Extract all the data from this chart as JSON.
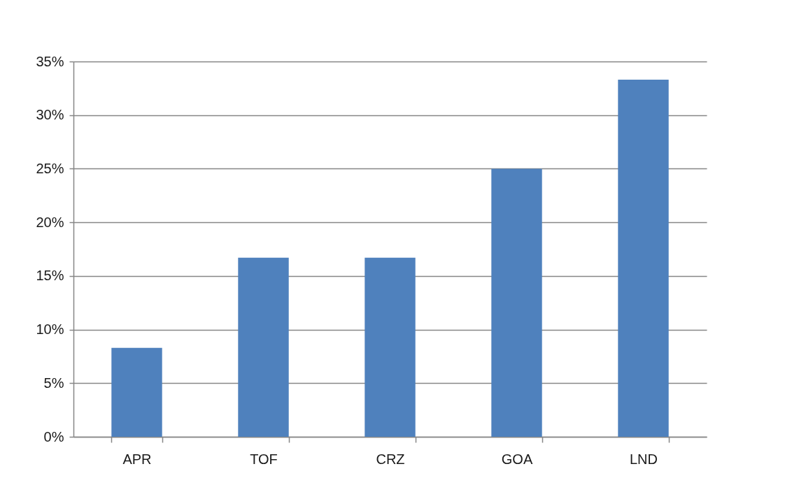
{
  "chart_data": {
    "type": "bar",
    "categories": [
      "APR",
      "TOF",
      "CRZ",
      "GOA",
      "LND"
    ],
    "values": [
      8.3,
      16.7,
      16.7,
      25,
      33.3
    ],
    "color": "#4f81bd",
    "ylim": [
      0,
      35
    ],
    "yticks": [
      {
        "value": 0,
        "label": "0%"
      },
      {
        "value": 5,
        "label": "5%"
      },
      {
        "value": 10,
        "label": "10%"
      },
      {
        "value": 15,
        "label": "15%"
      },
      {
        "value": 20,
        "label": "20%"
      },
      {
        "value": 25,
        "label": "25%"
      },
      {
        "value": 30,
        "label": "30%"
      },
      {
        "value": 35,
        "label": "35%"
      }
    ],
    "grid": "y"
  }
}
